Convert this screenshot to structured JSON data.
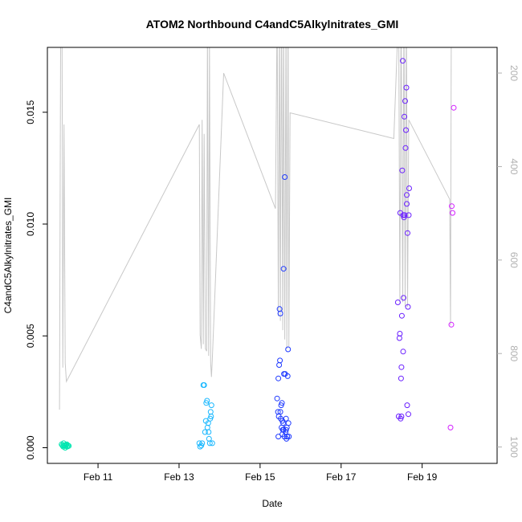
{
  "chart_data": {
    "type": "scatter",
    "title": "ATOM2 Northbound C4andC5Alkylnitrates_GMI",
    "xlabel": "Date",
    "ylabel": "C4andC5Alkylnitrates_GMI",
    "x_ticks": [
      "Feb 11",
      "Feb 13",
      "Feb 15",
      "Feb 17",
      "Feb 19"
    ],
    "x_tick_days": [
      11,
      13,
      15,
      17,
      19
    ],
    "xlim_days": [
      9.75,
      20.85
    ],
    "ylim": [
      -0.0007,
      0.0179
    ],
    "y_ticks": [
      0.0,
      0.005,
      0.01,
      0.015
    ],
    "y_tick_labels": [
      "0.000",
      "0.005",
      "0.010",
      "0.015"
    ],
    "y2_label": "",
    "y2_ticks": [
      200,
      400,
      600,
      800,
      1000
    ],
    "y2_lim": [
      1035,
      145
    ],
    "y2_color": "#b0b0b0",
    "scatter_series": [
      {
        "color": "#00e6b0",
        "points": [
          [
            10.1,
            0.00015
          ],
          [
            10.12,
            0.0001
          ],
          [
            10.14,
            5e-05
          ],
          [
            10.16,
            0.0001
          ],
          [
            10.18,
            0.00012
          ],
          [
            10.2,
            8e-05
          ],
          [
            10.22,
            0.00012
          ],
          [
            10.24,
            5e-05
          ],
          [
            10.26,
            0.0001
          ],
          [
            10.28,
            8e-05
          ],
          [
            10.15,
            0.0002
          ],
          [
            10.19,
            0.0
          ],
          [
            10.23,
            0.00015
          ]
        ]
      },
      {
        "color": "#1ab8ff",
        "points": [
          [
            13.5,
            0.0002
          ],
          [
            13.52,
            5e-05
          ],
          [
            13.55,
            0.0001
          ],
          [
            13.57,
            0.0002
          ],
          [
            13.6,
            0.0028
          ],
          [
            13.62,
            0.0028
          ],
          [
            13.64,
            0.0007
          ],
          [
            13.66,
            0.0012
          ],
          [
            13.67,
            0.002
          ],
          [
            13.69,
            0.0021
          ],
          [
            13.7,
            0.0009
          ],
          [
            13.72,
            0.0011
          ],
          [
            13.73,
            0.0007
          ],
          [
            13.74,
            0.0004
          ],
          [
            13.76,
            0.0002
          ],
          [
            13.78,
            0.0016
          ],
          [
            13.79,
            0.0014
          ],
          [
            13.8,
            0.0019
          ],
          [
            13.82,
            0.0002
          ],
          [
            13.77,
            0.0013
          ]
        ]
      },
      {
        "color": "#1f3aff",
        "points": [
          [
            15.42,
            0.0022
          ],
          [
            15.44,
            0.0016
          ],
          [
            15.45,
            0.0031
          ],
          [
            15.46,
            0.0014
          ],
          [
            15.47,
            0.0037
          ],
          [
            15.48,
            0.0062
          ],
          [
            15.49,
            0.0039
          ],
          [
            15.5,
            0.006
          ],
          [
            15.51,
            0.0013
          ],
          [
            15.52,
            0.0019
          ],
          [
            15.53,
            0.0009
          ],
          [
            15.54,
            0.002
          ],
          [
            15.55,
            0.0006
          ],
          [
            15.56,
            0.0008
          ],
          [
            15.57,
            0.0011
          ],
          [
            15.58,
            0.0008
          ],
          [
            15.59,
            0.0033
          ],
          [
            15.6,
            0.0005
          ],
          [
            15.61,
            0.0121
          ],
          [
            15.62,
            0.0033
          ],
          [
            15.63,
            0.0007
          ],
          [
            15.64,
            0.0013
          ],
          [
            15.65,
            0.0004
          ],
          [
            15.66,
            0.0009
          ],
          [
            15.67,
            0.0005
          ],
          [
            15.68,
            0.0032
          ],
          [
            15.69,
            0.0044
          ],
          [
            15.7,
            0.0011
          ],
          [
            15.71,
            0.0005
          ],
          [
            15.58,
            0.008
          ],
          [
            15.45,
            0.0005
          ],
          [
            15.55,
            0.0012
          ],
          [
            15.64,
            0.0008
          ],
          [
            15.5,
            0.0016
          ]
        ]
      },
      {
        "color": "#6a1fff",
        "points": [
          [
            18.4,
            0.0065
          ],
          [
            18.42,
            0.0014
          ],
          [
            18.44,
            0.0049
          ],
          [
            18.45,
            0.0051
          ],
          [
            18.46,
            0.0105
          ],
          [
            18.47,
            0.0013
          ],
          [
            18.48,
            0.0031
          ],
          [
            18.49,
            0.0036
          ],
          [
            18.5,
            0.0059
          ],
          [
            18.51,
            0.0124
          ],
          [
            18.52,
            0.0173
          ],
          [
            18.53,
            0.0104
          ],
          [
            18.54,
            0.0067
          ],
          [
            18.55,
            0.0103
          ],
          [
            18.56,
            0.0148
          ],
          [
            18.57,
            0.0104
          ],
          [
            18.58,
            0.0155
          ],
          [
            18.59,
            0.0134
          ],
          [
            18.6,
            0.0142
          ],
          [
            18.61,
            0.0161
          ],
          [
            18.62,
            0.0113
          ],
          [
            18.63,
            0.0019
          ],
          [
            18.64,
            0.0096
          ],
          [
            18.65,
            0.0063
          ],
          [
            18.66,
            0.0015
          ],
          [
            18.67,
            0.0104
          ],
          [
            18.68,
            0.0116
          ],
          [
            18.53,
            0.0043
          ],
          [
            18.49,
            0.0014
          ],
          [
            18.62,
            0.0109
          ]
        ]
      },
      {
        "color": "#d21fff",
        "points": [
          [
            19.7,
            0.0009
          ],
          [
            19.72,
            0.0055
          ],
          [
            19.73,
            0.0108
          ],
          [
            19.75,
            0.0105
          ],
          [
            19.78,
            0.0152
          ]
        ]
      }
    ],
    "line_series": {
      "color": "#c8c8c8",
      "points": [
        [
          10.05,
          920
        ],
        [
          10.08,
          70
        ],
        [
          10.11,
          70
        ],
        [
          10.13,
          830
        ],
        [
          10.16,
          310
        ],
        [
          10.19,
          820
        ],
        [
          10.22,
          860
        ],
        [
          13.5,
          310
        ],
        [
          13.52,
          760
        ],
        [
          13.55,
          790
        ],
        [
          13.57,
          300
        ],
        [
          13.6,
          780
        ],
        [
          13.62,
          330
        ],
        [
          13.65,
          790
        ],
        [
          13.68,
          795
        ],
        [
          13.7,
          110
        ],
        [
          13.73,
          805
        ],
        [
          13.75,
          120
        ],
        [
          13.78,
          820
        ],
        [
          13.8,
          850
        ],
        [
          13.82,
          815
        ],
        [
          14.1,
          200
        ],
        [
          15.38,
          490
        ],
        [
          15.42,
          60
        ],
        [
          15.45,
          720
        ],
        [
          15.48,
          60
        ],
        [
          15.5,
          730
        ],
        [
          15.53,
          60
        ],
        [
          15.56,
          750
        ],
        [
          15.58,
          60
        ],
        [
          15.61,
          770
        ],
        [
          15.64,
          60
        ],
        [
          15.66,
          790
        ],
        [
          15.69,
          60
        ],
        [
          15.71,
          785
        ],
        [
          15.74,
          285
        ],
        [
          18.3,
          340
        ],
        [
          18.42,
          60
        ],
        [
          18.45,
          690
        ],
        [
          18.48,
          60
        ],
        [
          18.52,
          690
        ],
        [
          18.55,
          60
        ],
        [
          18.58,
          700
        ],
        [
          18.61,
          60
        ],
        [
          18.64,
          700
        ],
        [
          18.67,
          300
        ],
        [
          19.68,
          470
        ],
        [
          19.7,
          740
        ],
        [
          19.72,
          60
        ]
      ]
    }
  }
}
